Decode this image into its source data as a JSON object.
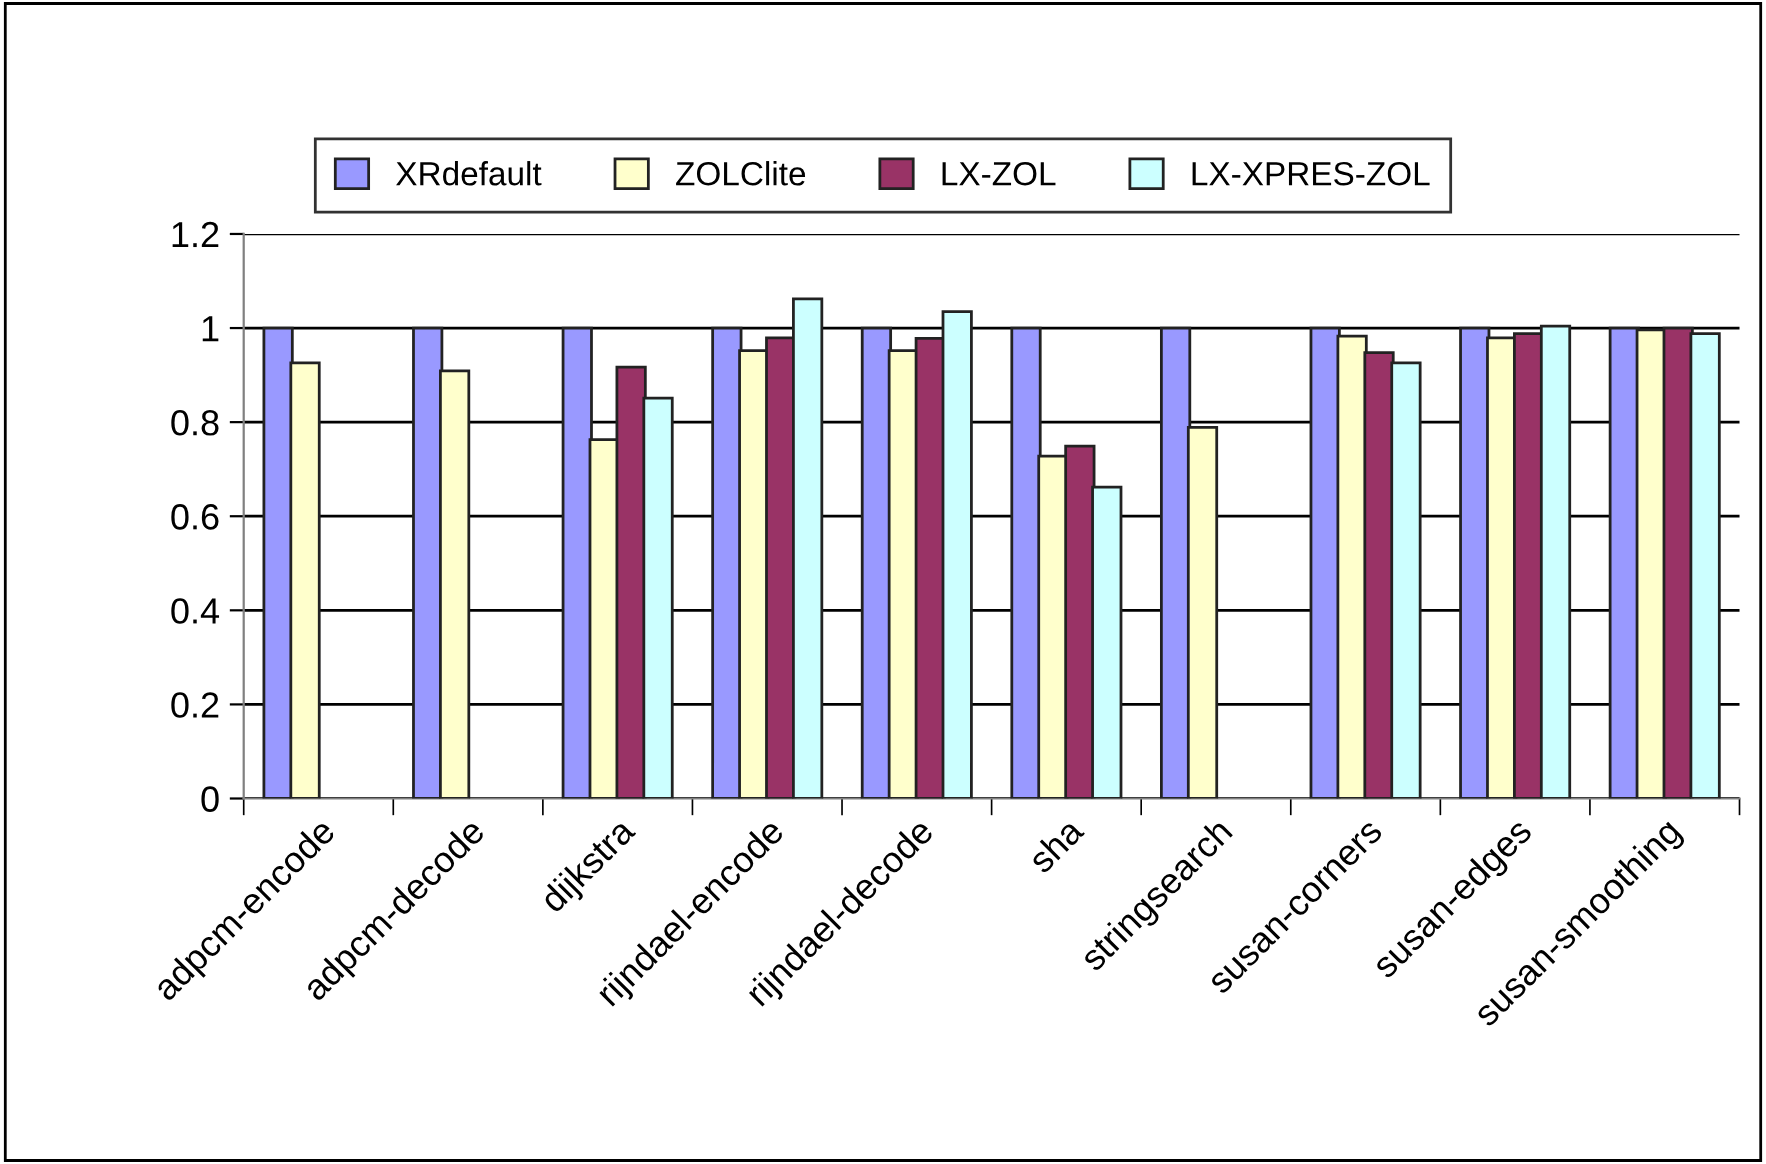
{
  "chart_data": {
    "type": "bar",
    "categories": [
      "adpcm-encode",
      "adpcm-decode",
      "dijkstra",
      "rijndael-encode",
      "rijndael-decode",
      "sha",
      "stringsearch",
      "susan-corners",
      "susan-edges",
      "susan-smoothing"
    ],
    "series": [
      {
        "name": "XRdefault",
        "color": "#9999ff",
        "values": [
          1,
          1,
          1,
          1,
          1,
          1,
          1,
          1,
          1,
          1
        ]
      },
      {
        "name": "ZOLClite",
        "color": "#ffffcc",
        "values": [
          0.926,
          0.909,
          0.763,
          0.952,
          0.952,
          0.728,
          0.789,
          0.983,
          0.979,
          0.996
        ]
      },
      {
        "name": "LX-ZOL",
        "color": "#993366",
        "values": [
          null,
          null,
          0.917,
          0.979,
          0.978,
          0.749,
          null,
          0.948,
          0.988,
          1.0
        ]
      },
      {
        "name": "LX-XPRES-ZOL",
        "color": "#ccffff",
        "values": [
          null,
          null,
          0.851,
          1.062,
          1.035,
          0.662,
          null,
          0.926,
          1.004,
          0.988
        ]
      }
    ],
    "ylim": [
      0,
      1.2
    ],
    "yticks": [
      {
        "value": 0,
        "label": "0"
      },
      {
        "value": 0.2,
        "label": "0.2"
      },
      {
        "value": 0.4,
        "label": "0.4"
      },
      {
        "value": 0.6,
        "label": "0.6"
      },
      {
        "value": 0.8,
        "label": "0.8"
      },
      {
        "value": 1,
        "label": "1"
      },
      {
        "value": 1.2,
        "label": "1.2"
      }
    ],
    "grid": "y",
    "legend": "top"
  }
}
